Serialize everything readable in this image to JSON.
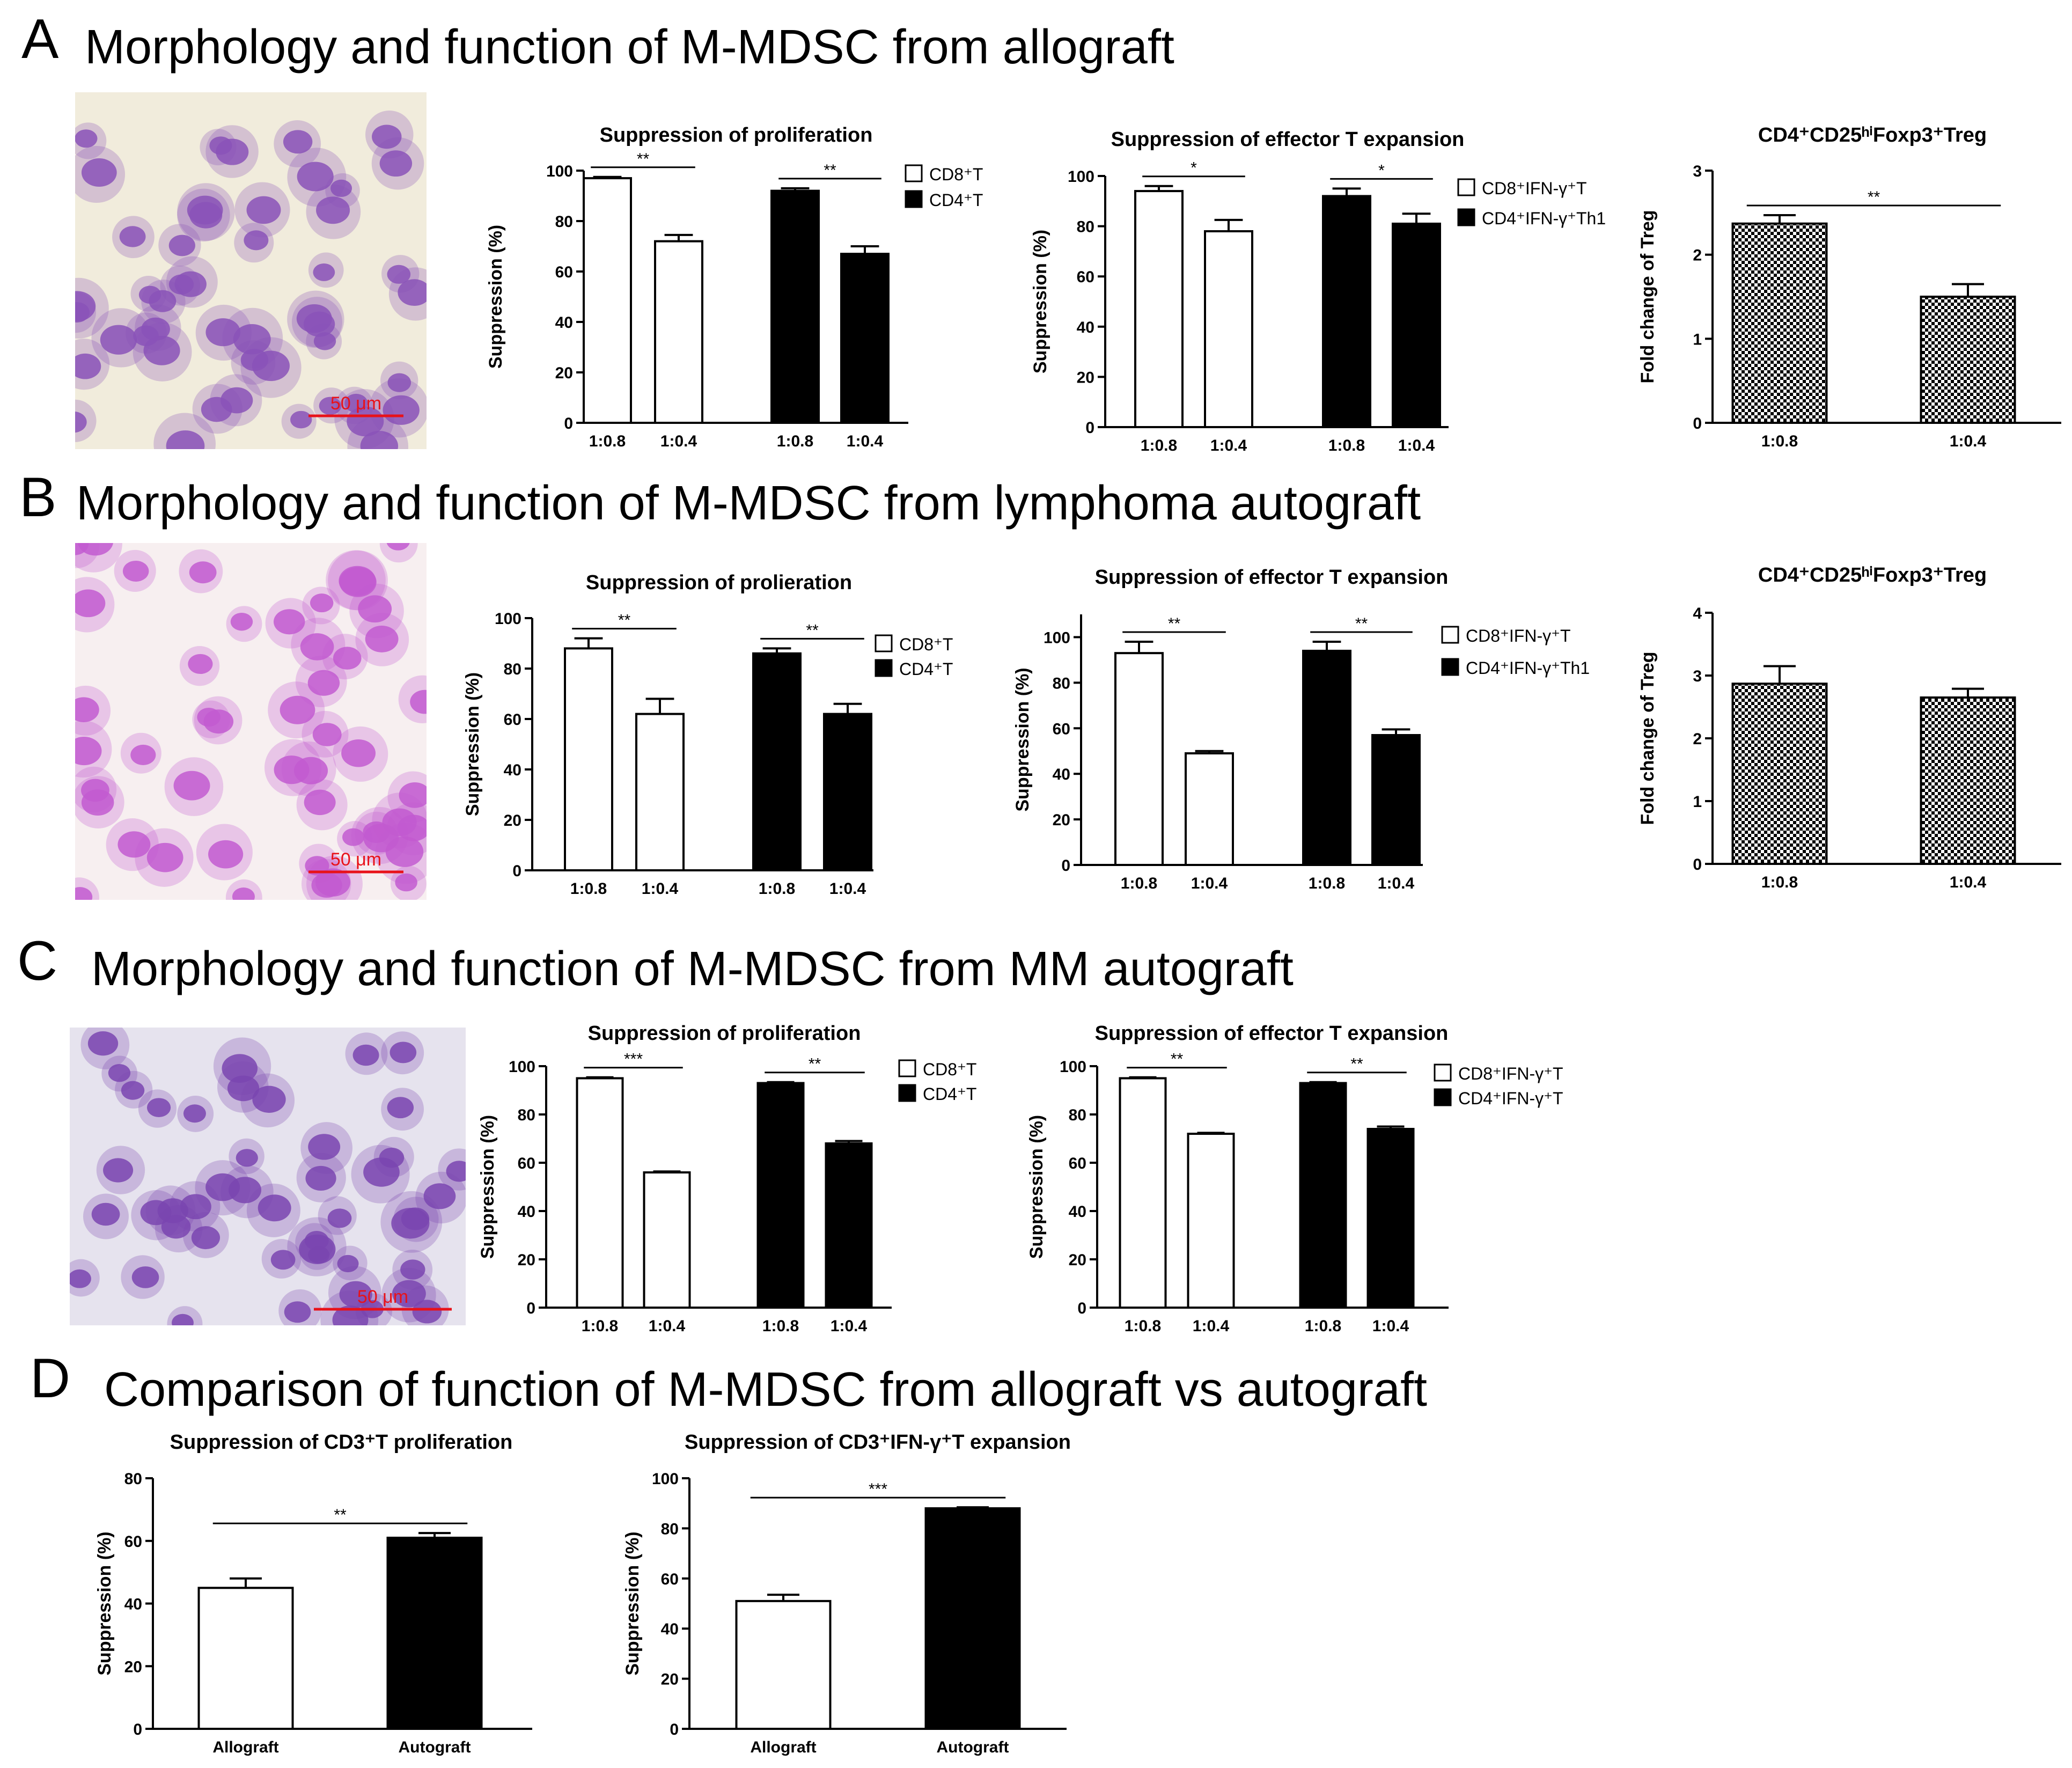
{
  "rows": [
    {
      "letter": "A",
      "title": "Morphology and function of M-MDSC from allograft",
      "scalebar": "50 μm",
      "cell_color": "#8a52b8"
    },
    {
      "letter": "B",
      "title": "Morphology and function of M-MDSC from lymphoma autograft",
      "scalebar": "50 μm",
      "cell_color": "#c25ad0"
    },
    {
      "letter": "C",
      "title": "Morphology and function of M‑MDSC from MM autograft",
      "scalebar": "50 μm",
      "cell_color": "#7a45b0"
    },
    {
      "letter": "D",
      "title": "Comparison of function of M-MDSC from allograft vs autograft"
    }
  ],
  "chart_data": [
    {
      "id": "A1",
      "type": "bar",
      "title": "Suppression of proliferation",
      "ylabel": "Suppression (%)",
      "ylim": [
        0,
        100
      ],
      "yticks": [
        0,
        20,
        40,
        60,
        80,
        100
      ],
      "categories": [
        "1:0.8",
        "1:0.4",
        "1:0.8",
        "1:0.4"
      ],
      "values": [
        97,
        72,
        92,
        67
      ],
      "errors": [
        0.5,
        2.5,
        1,
        3
      ],
      "fills": [
        "white",
        "white",
        "black",
        "black"
      ],
      "legend": [
        {
          "label": "CD8⁺T",
          "fill": "white"
        },
        {
          "label": "CD4⁺T",
          "fill": "black"
        }
      ],
      "sig": [
        {
          "from": 0,
          "to": 1,
          "label": "**"
        },
        {
          "from": 2,
          "to": 3,
          "label": "**"
        }
      ]
    },
    {
      "id": "A2",
      "type": "bar",
      "title": "Suppression of effector T expansion",
      "ylabel": "Suppression (%)",
      "ylim": [
        0,
        100
      ],
      "yticks": [
        0,
        20,
        40,
        60,
        80,
        100
      ],
      "categories": [
        "1:0.8",
        "1:0.4",
        "1:0.8",
        "1:0.4"
      ],
      "values": [
        94,
        78,
        92,
        81
      ],
      "errors": [
        2,
        4.5,
        3,
        4
      ],
      "fills": [
        "white",
        "white",
        "black",
        "black"
      ],
      "legend": [
        {
          "label": "CD8⁺IFN-γ⁺T",
          "fill": "white"
        },
        {
          "label": "CD4⁺IFN-γ⁺Th1",
          "fill": "black"
        }
      ],
      "sig": [
        {
          "from": 0,
          "to": 1,
          "label": "*"
        },
        {
          "from": 2,
          "to": 3,
          "label": "*"
        }
      ]
    },
    {
      "id": "A3",
      "type": "bar",
      "title": "CD4⁺CD25ʰⁱFoxp3⁺Treg",
      "ylabel": "Fold change of Treg",
      "ylim": [
        0,
        3
      ],
      "yticks": [
        0,
        1,
        2,
        3
      ],
      "categories": [
        "1:0.8",
        "1:0.4"
      ],
      "values": [
        2.37,
        1.5
      ],
      "errors": [
        0.1,
        0.15
      ],
      "fills": [
        "check",
        "check"
      ],
      "legend": [],
      "sig": [
        {
          "from": 0,
          "to": 1,
          "label": "**"
        }
      ]
    },
    {
      "id": "B1",
      "type": "bar",
      "title": "Suppression of prolieration",
      "ylabel": "Suppression (%)",
      "ylim": [
        0,
        100
      ],
      "yticks": [
        0,
        20,
        40,
        60,
        80,
        100
      ],
      "categories": [
        "1:0.8",
        "1:0.4",
        "1:0.8",
        "1:0.4"
      ],
      "values": [
        88,
        62,
        86,
        62
      ],
      "errors": [
        4,
        6,
        2,
        4
      ],
      "fills": [
        "white",
        "white",
        "black",
        "black"
      ],
      "legend": [
        {
          "label": "CD8⁺T",
          "fill": "white"
        },
        {
          "label": "CD4⁺T",
          "fill": "black"
        }
      ],
      "sig": [
        {
          "from": 0,
          "to": 1,
          "label": "**"
        },
        {
          "from": 2,
          "to": 3,
          "label": "**"
        }
      ]
    },
    {
      "id": "B2",
      "type": "bar",
      "title": "Suppression of effector T expansion",
      "ylabel": "Suppression (%)",
      "ylim": [
        0,
        110
      ],
      "yticks": [
        0,
        20,
        40,
        60,
        80,
        100
      ],
      "categories": [
        "1:0.8",
        "1:0.4",
        "1:0.8",
        "1:0.4"
      ],
      "values": [
        93,
        49,
        94,
        57
      ],
      "errors": [
        5,
        1,
        4,
        2.5
      ],
      "fills": [
        "white",
        "white",
        "black",
        "black"
      ],
      "legend": [
        {
          "label": "CD8⁺IFN-γ⁺T",
          "fill": "white"
        },
        {
          "label": "CD4⁺IFN-γ⁺Th1",
          "fill": "black"
        }
      ],
      "sig": [
        {
          "from": 0,
          "to": 1,
          "label": "**"
        },
        {
          "from": 2,
          "to": 3,
          "label": "**"
        }
      ]
    },
    {
      "id": "B3",
      "type": "bar",
      "title": "CD4⁺CD25ʰⁱFoxp3⁺Treg",
      "ylabel": "Fold change of Treg",
      "ylim": [
        0,
        4
      ],
      "yticks": [
        0,
        1,
        2,
        3,
        4
      ],
      "categories": [
        "1:0.8",
        "1:0.4"
      ],
      "values": [
        2.87,
        2.65
      ],
      "errors": [
        0.28,
        0.14
      ],
      "fills": [
        "check",
        "check"
      ],
      "legend": [],
      "sig": []
    },
    {
      "id": "C1",
      "type": "bar",
      "title": "Suppression of proliferation",
      "ylabel": "Suppression (%)",
      "ylim": [
        0,
        100
      ],
      "yticks": [
        0,
        20,
        40,
        60,
        80,
        100
      ],
      "categories": [
        "1:0.8",
        "1:0.4",
        "1:0.8",
        "1:0.4"
      ],
      "values": [
        95,
        56,
        93,
        68
      ],
      "errors": [
        0.4,
        0.4,
        0.4,
        1
      ],
      "fills": [
        "white",
        "white",
        "black",
        "black"
      ],
      "legend": [
        {
          "label": "CD8⁺T",
          "fill": "white"
        },
        {
          "label": "CD4⁺T",
          "fill": "black"
        }
      ],
      "sig": [
        {
          "from": 0,
          "to": 1,
          "label": "***"
        },
        {
          "from": 2,
          "to": 3,
          "label": "**"
        }
      ]
    },
    {
      "id": "C2",
      "type": "bar",
      "title": "Suppression of effector T expansion",
      "ylabel": "Suppression (%)",
      "ylim": [
        0,
        100
      ],
      "yticks": [
        0,
        20,
        40,
        60,
        80,
        100
      ],
      "categories": [
        "1:0.8",
        "1:0.4",
        "1:0.8",
        "1:0.4"
      ],
      "values": [
        95,
        72,
        93,
        74
      ],
      "errors": [
        0.4,
        0.4,
        0.4,
        1
      ],
      "fills": [
        "white",
        "white",
        "black",
        "black"
      ],
      "legend": [
        {
          "label": "CD8⁺IFN-γ⁺T",
          "fill": "white"
        },
        {
          "label": "CD4⁺IFN-γ⁺T",
          "fill": "black"
        }
      ],
      "sig": [
        {
          "from": 0,
          "to": 1,
          "label": "**"
        },
        {
          "from": 2,
          "to": 3,
          "label": "**"
        }
      ]
    },
    {
      "id": "D1",
      "type": "bar",
      "title": "Suppression of CD3⁺T proliferation",
      "ylabel": "Suppression (%)",
      "ylim": [
        0,
        80
      ],
      "yticks": [
        0,
        20,
        40,
        60,
        80
      ],
      "categories": [
        "Allograft",
        "Autograft"
      ],
      "values": [
        45,
        61
      ],
      "errors": [
        3,
        1.5
      ],
      "fills": [
        "white",
        "black"
      ],
      "legend": [],
      "sig": [
        {
          "from": 0,
          "to": 1,
          "label": "**"
        }
      ]
    },
    {
      "id": "D2",
      "type": "bar",
      "title": "Suppression of CD3⁺IFN-γ⁺T expansion",
      "ylabel": "Suppression (%)",
      "ylim": [
        0,
        100
      ],
      "yticks": [
        0,
        20,
        40,
        60,
        80,
        100
      ],
      "categories": [
        "Allograft",
        "Autograft"
      ],
      "values": [
        51,
        88
      ],
      "errors": [
        2.5,
        0.4
      ],
      "fills": [
        "white",
        "black"
      ],
      "legend": [],
      "sig": [
        {
          "from": 0,
          "to": 1,
          "label": "***"
        }
      ]
    }
  ]
}
